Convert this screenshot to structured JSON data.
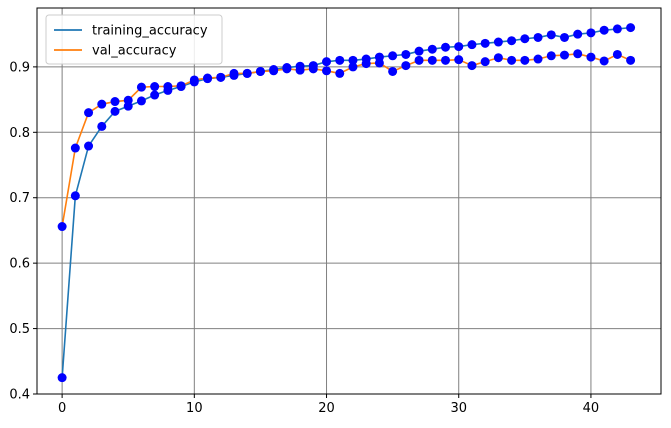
{
  "chart_data": {
    "type": "line",
    "title": "",
    "xlabel": "",
    "ylabel": "",
    "xlim": [
      -1.9,
      45.3
    ],
    "ylim": [
      0.4,
      0.99
    ],
    "xticks": [
      0,
      10,
      20,
      30,
      40
    ],
    "yticks": [
      0.4,
      0.5,
      0.6,
      0.7,
      0.8,
      0.9
    ],
    "xtick_labels": [
      "0",
      "10",
      "20",
      "30",
      "40"
    ],
    "ytick_labels": [
      "0.4",
      "0.5",
      "0.6",
      "0.7",
      "0.8",
      "0.9"
    ],
    "grid": true,
    "grid_color": "#808080",
    "legend_position": "upper left",
    "marker_color": "#0000ff",
    "x": [
      0,
      1,
      2,
      3,
      4,
      5,
      6,
      7,
      8,
      9,
      10,
      11,
      12,
      13,
      14,
      15,
      16,
      17,
      18,
      19,
      20,
      21,
      22,
      23,
      24,
      25,
      26,
      27,
      28,
      29,
      30,
      31,
      32,
      33,
      34,
      35,
      36,
      37,
      38,
      39,
      40,
      41,
      42,
      43
    ],
    "series": [
      {
        "name": "training_accuracy",
        "color": "#1f77b4",
        "values": [
          0.425,
          0.703,
          0.779,
          0.809,
          0.832,
          0.84,
          0.848,
          0.857,
          0.864,
          0.87,
          0.877,
          0.882,
          0.884,
          0.887,
          0.89,
          0.893,
          0.896,
          0.899,
          0.901,
          0.902,
          0.908,
          0.91,
          0.91,
          0.912,
          0.915,
          0.917,
          0.919,
          0.924,
          0.927,
          0.93,
          0.931,
          0.934,
          0.936,
          0.938,
          0.94,
          0.943,
          0.945,
          0.949,
          0.945,
          0.95,
          0.952,
          0.956,
          0.958,
          0.96
        ]
      },
      {
        "name": "val_accuracy",
        "color": "#ff7f0e",
        "values": [
          0.656,
          0.776,
          0.83,
          0.843,
          0.847,
          0.849,
          0.869,
          0.87,
          0.87,
          0.871,
          0.88,
          0.883,
          0.884,
          0.89,
          0.89,
          0.893,
          0.894,
          0.897,
          0.895,
          0.897,
          0.894,
          0.89,
          0.9,
          0.905,
          0.906,
          0.893,
          0.902,
          0.91,
          0.91,
          0.91,
          0.911,
          0.902,
          0.908,
          0.914,
          0.91,
          0.91,
          0.912,
          0.917,
          0.918,
          0.92,
          0.915,
          0.909,
          0.919,
          0.91
        ]
      }
    ]
  }
}
